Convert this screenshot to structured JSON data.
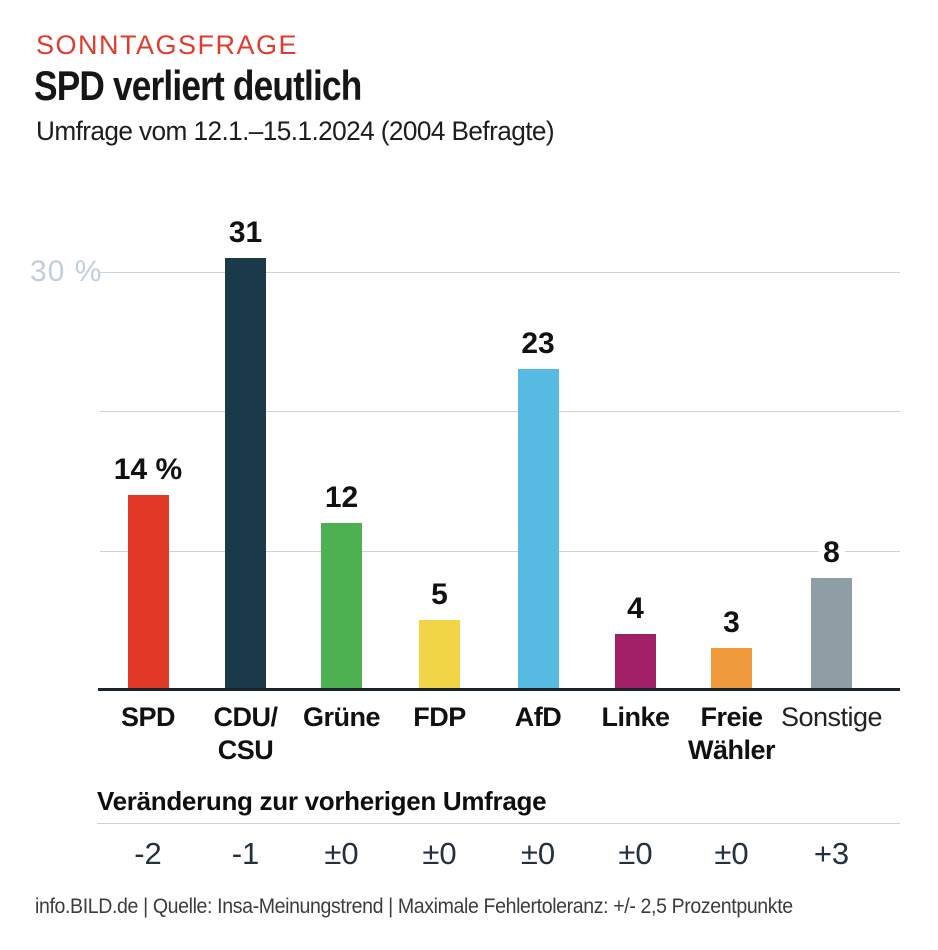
{
  "header": {
    "kicker": "SONNTAGSFRAGE",
    "title": "SPD verliert deutlich",
    "subtitle": "Umfrage vom 12.1.–15.1.2024 (2004 Befragte)"
  },
  "chart_data": {
    "type": "bar",
    "unit": "percent",
    "ylim": [
      0,
      33
    ],
    "grid": true,
    "yticks": [
      {
        "percent": 30,
        "label": "30 %"
      },
      {
        "percent": 20,
        "label": ""
      },
      {
        "percent": 10,
        "label": ""
      }
    ],
    "categories": [
      "SPD",
      "CDU/CSU",
      "Grüne",
      "FDP",
      "AfD",
      "Linke",
      "Freie Wähler",
      "Sonstige"
    ],
    "values": [
      14,
      31,
      12,
      5,
      23,
      4,
      3,
      8
    ],
    "value_labels": [
      "14 %",
      "31",
      "12",
      "5",
      "23",
      "4",
      "3",
      "8"
    ],
    "changes": [
      "-2",
      "-1",
      "±0",
      "±0",
      "±0",
      "±0",
      "±0",
      "+3"
    ],
    "colors": [
      "#e03826",
      "#1a3a4a",
      "#4db152",
      "#f2d447",
      "#56bae2",
      "#a02166",
      "#f09b3b",
      "#8f9ea4"
    ],
    "label_lines": [
      [
        "SPD"
      ],
      [
        "CDU/",
        "CSU"
      ],
      [
        "Grüne"
      ],
      [
        "FDP"
      ],
      [
        "AfD"
      ],
      [
        "Linke"
      ],
      [
        "Freie",
        "Wähler"
      ],
      [
        "Sonstige"
      ]
    ],
    "label_bold": [
      true,
      true,
      true,
      true,
      true,
      true,
      true,
      false
    ]
  },
  "change_section": {
    "title": "Veränderung zur vorherigen Umfrage"
  },
  "footer": {
    "text": "info.BILD.de | Quelle: Insa-Meinungstrend | Maximale Fehlertoleranz: +/- 2,5 Prozentpunkte"
  },
  "accent_colors": {
    "kicker_red": "#e23b2e",
    "grid_blue": "#c9d6e2",
    "ytick_text": "#c2cedd",
    "axis_dark": "#1c242b",
    "change_value_text": "#223040"
  }
}
